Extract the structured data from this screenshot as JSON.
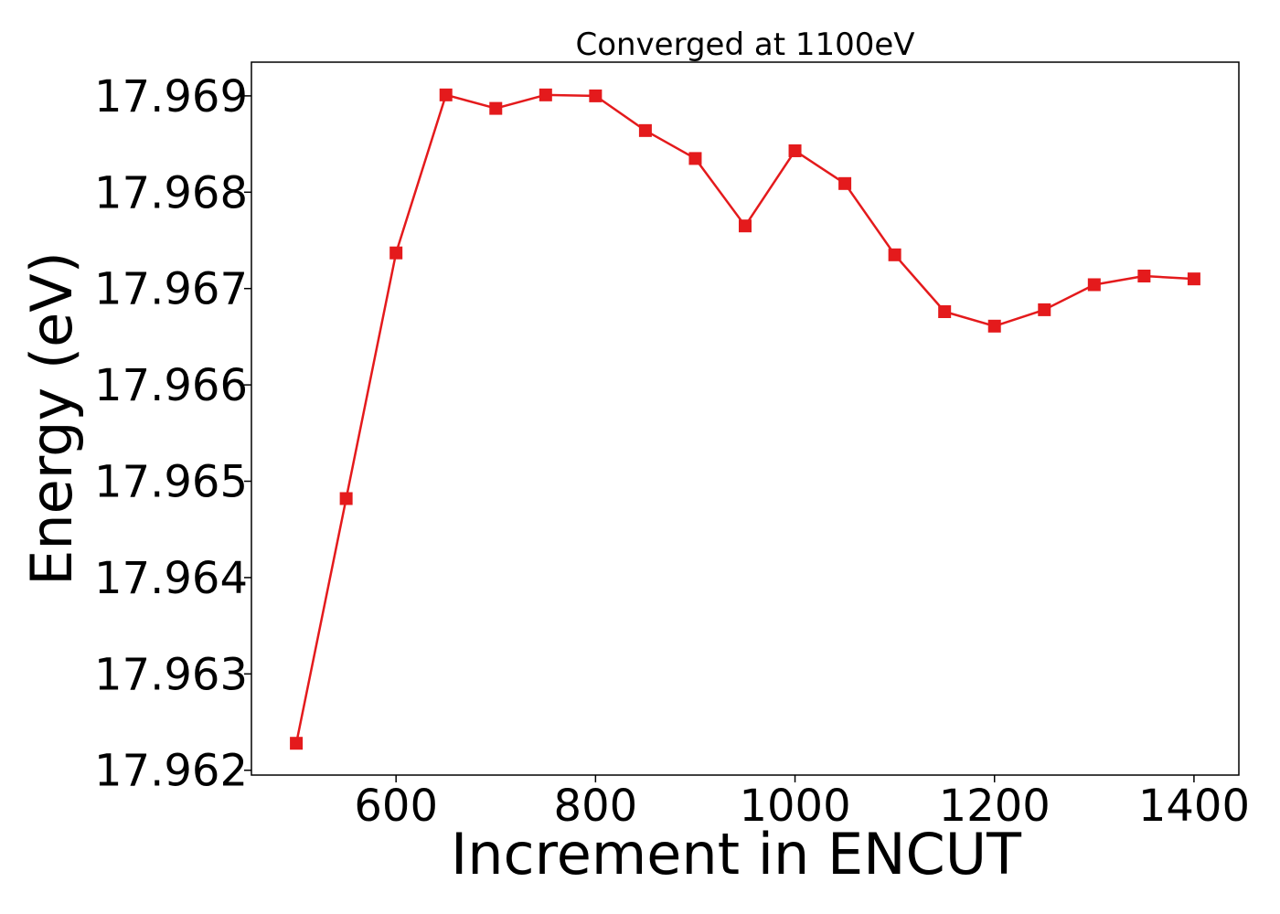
{
  "chart_data": {
    "type": "line",
    "title": "Converged at 1100eV",
    "xlabel": "Increment in ENCUT",
    "ylabel": "Energy (eV)",
    "xlim": [
      455,
      1445
    ],
    "ylim": [
      17.96195,
      17.96935
    ],
    "x_ticks": [
      600,
      800,
      1000,
      1200,
      1400
    ],
    "x_tick_labels": [
      "600",
      "800",
      "1000",
      "1200",
      "1400"
    ],
    "y_ticks": [
      17.962,
      17.963,
      17.964,
      17.965,
      17.966,
      17.967,
      17.968,
      17.969
    ],
    "y_tick_labels": [
      "17.962",
      "17.963",
      "17.964",
      "17.965",
      "17.966",
      "17.967",
      "17.968",
      "17.969"
    ],
    "grid": false,
    "series": [
      {
        "color": "#e41a1c",
        "marker": "square",
        "x": [
          500,
          550,
          600,
          650,
          700,
          750,
          800,
          850,
          900,
          950,
          1000,
          1050,
          1100,
          1150,
          1200,
          1250,
          1300,
          1350,
          1400
        ],
        "y": [
          17.96228,
          17.96482,
          17.96737,
          17.96901,
          17.96887,
          17.96901,
          17.969,
          17.96864,
          17.96835,
          17.96765,
          17.96843,
          17.96809,
          17.96735,
          17.96676,
          17.96661,
          17.96678,
          17.96704,
          17.96713,
          17.9671
        ]
      }
    ]
  }
}
